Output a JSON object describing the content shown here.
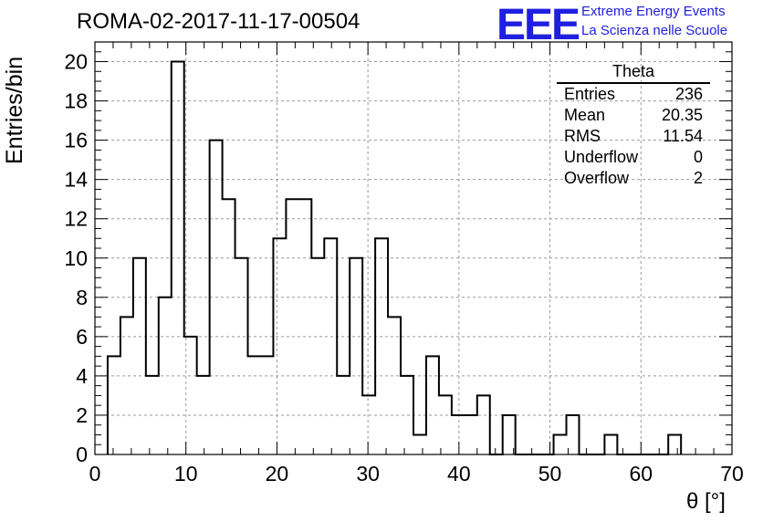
{
  "page": {
    "title": "ROMA-02-2017-11-17-00504"
  },
  "logo": {
    "mark": "EEE",
    "line1": "Extreme Energy Events",
    "line2": "La Scienza nelle Scuole",
    "color": "#1f1fe0"
  },
  "stats": {
    "title": "Theta",
    "rows": [
      {
        "label": "Entries",
        "value": "236"
      },
      {
        "label": "Mean",
        "value": "20.35"
      },
      {
        "label": "RMS",
        "value": "11.54"
      },
      {
        "label": "Underflow",
        "value": "0"
      },
      {
        "label": "Overflow",
        "value": "2"
      }
    ]
  },
  "chart_data": {
    "type": "bar",
    "histogram_style": "step",
    "bin_width": 1.4,
    "x_start": 1.4,
    "values": [
      5,
      7,
      10,
      4,
      8,
      20,
      6,
      4,
      16,
      13,
      10,
      5,
      5,
      11,
      13,
      13,
      10,
      11,
      4,
      10,
      3,
      11,
      7,
      4,
      1,
      5,
      3,
      2,
      2,
      3,
      0,
      2,
      0,
      0,
      0,
      1,
      2,
      0,
      0,
      1,
      0,
      0,
      0,
      0,
      1
    ],
    "xlabel": "θ [°]",
    "ylabel": "Entries/bin",
    "xlim": [
      0,
      70
    ],
    "ylim": [
      0,
      21
    ],
    "x_ticks": [
      0,
      10,
      20,
      30,
      40,
      50,
      60,
      70
    ],
    "y_ticks": [
      0,
      2,
      4,
      6,
      8,
      10,
      12,
      14,
      16,
      18,
      20
    ],
    "grid": true,
    "line_color": "#000000",
    "grid_color": "#9a9a9a"
  }
}
